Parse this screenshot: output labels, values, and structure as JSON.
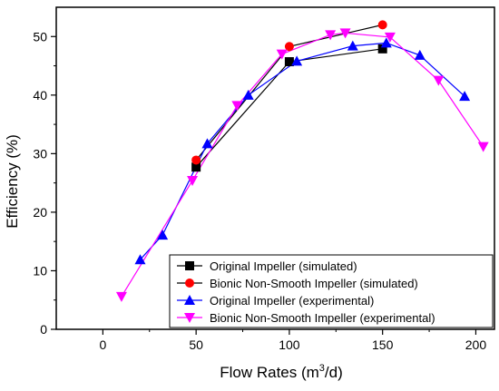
{
  "chart_data": {
    "type": "line",
    "title": "",
    "xlabel": "Flow Rates (m³/d)",
    "xlabel_parts": {
      "base": "Flow Rates (m",
      "sup": "3",
      "tail": "/d)"
    },
    "ylabel": "Efficiency (%)",
    "xlim": [
      -25,
      210
    ],
    "ylim": [
      0,
      55
    ],
    "xticks": [
      0,
      50,
      100,
      150,
      200
    ],
    "yticks": [
      0,
      10,
      20,
      30,
      40,
      50
    ],
    "grid": false,
    "legend_position": "bottom-right",
    "series": [
      {
        "name": "Original Impeller (simulated)",
        "color": "#000000",
        "marker": "square",
        "x": [
          50,
          100,
          150
        ],
        "y": [
          27.7,
          45.7,
          47.9
        ]
      },
      {
        "name": "Bionic Non-Smooth Impeller (simulated)",
        "color": "#ff0000",
        "line_color": "#000000",
        "marker": "circle",
        "x": [
          50,
          100,
          150
        ],
        "y": [
          28.9,
          48.3,
          52.0
        ]
      },
      {
        "name": "Original Impeller (experimental)",
        "color": "#0000ff",
        "marker": "triangle-up",
        "x": [
          20,
          32,
          56,
          78,
          104,
          134,
          152,
          170,
          194
        ],
        "y": [
          11.9,
          16.1,
          31.7,
          40.0,
          45.8,
          48.4,
          48.9,
          46.8,
          39.8
        ]
      },
      {
        "name": "Bionic Non-Smooth Impeller (experimental)",
        "color": "#ff00ff",
        "marker": "triangle-down",
        "x": [
          10,
          48,
          72,
          96,
          122,
          130,
          154,
          180,
          204
        ],
        "y": [
          5.6,
          25.4,
          38.2,
          47.0,
          50.3,
          50.6,
          49.9,
          42.5,
          31.2
        ]
      }
    ]
  }
}
